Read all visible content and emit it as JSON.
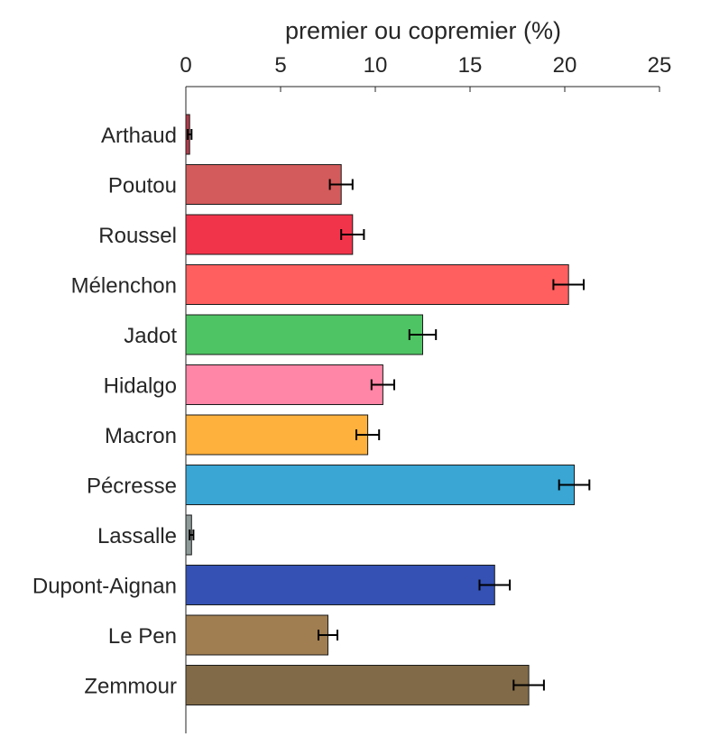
{
  "chart_data": {
    "type": "bar",
    "orientation": "horizontal",
    "title": "",
    "xlabel": "premier ou copremier (%)",
    "ylabel": "",
    "xlim": [
      0,
      25
    ],
    "xticks": [
      0,
      5,
      10,
      15,
      20,
      25
    ],
    "x_axis_position": "top",
    "grid": false,
    "legend": "none",
    "categories": [
      "Arthaud",
      "Poutou",
      "Roussel",
      "Mélenchon",
      "Jadot",
      "Hidalgo",
      "Macron",
      "Pécresse",
      "Lassalle",
      "Dupont-Aignan",
      "Le Pen",
      "Zemmour"
    ],
    "values": [
      0.2,
      8.2,
      8.8,
      20.2,
      12.5,
      10.4,
      9.6,
      20.5,
      0.3,
      16.3,
      7.5,
      18.1
    ],
    "errors": [
      0.1,
      0.6,
      0.6,
      0.8,
      0.7,
      0.6,
      0.6,
      0.8,
      0.1,
      0.8,
      0.5,
      0.8
    ],
    "colors": [
      "#b23c4a",
      "#d35b5b",
      "#f2344b",
      "#ff5f5f",
      "#4fc464",
      "#ff86a6",
      "#ffb13d",
      "#39a6d4",
      "#8c9a98",
      "#3451b3",
      "#a07e51",
      "#816a47"
    ]
  }
}
